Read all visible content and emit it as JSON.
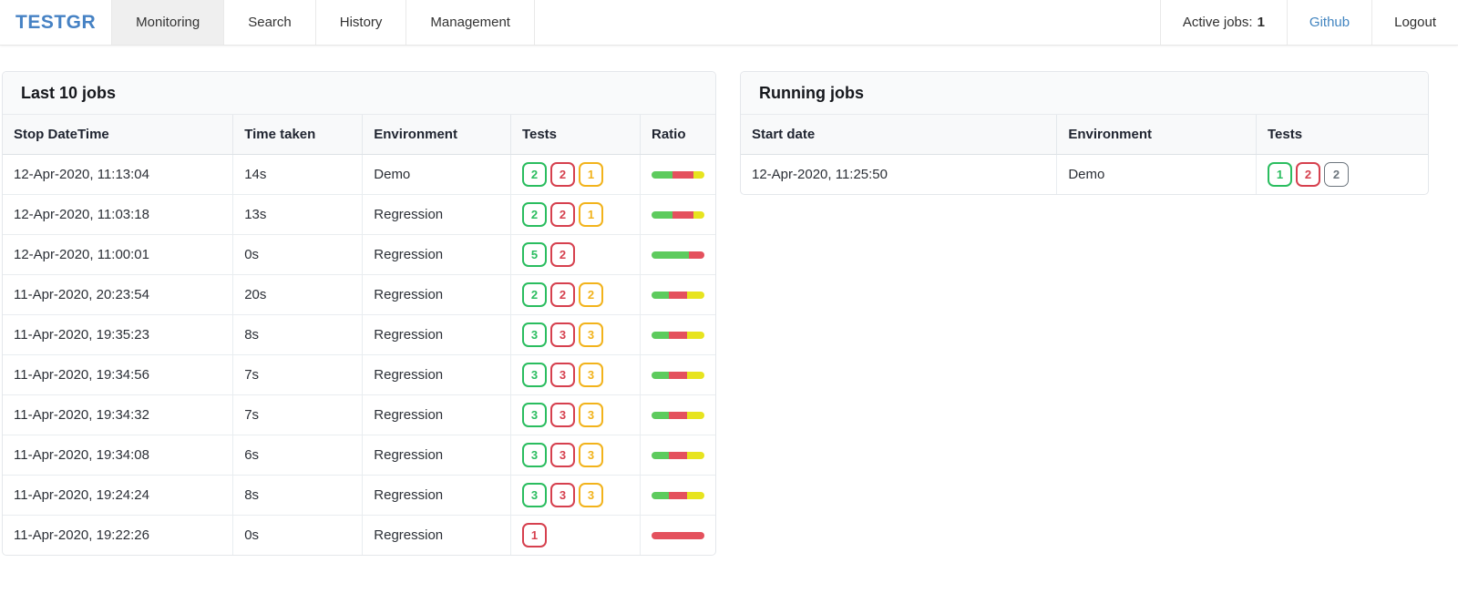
{
  "navbar": {
    "brand": "TESTGR",
    "tabs": [
      {
        "label": "Monitoring",
        "active": true
      },
      {
        "label": "Search",
        "active": false
      },
      {
        "label": "History",
        "active": false
      },
      {
        "label": "Management",
        "active": false
      }
    ],
    "active_jobs_label": "Active jobs:",
    "active_jobs_count": "1",
    "github_label": "Github",
    "logout_label": "Logout"
  },
  "colors": {
    "brand": "#4682c4",
    "link": "#4285c0",
    "badge_success": "#2abd5f",
    "badge_danger": "#d6404e",
    "badge_warning": "#f2b31b",
    "badge_secondary": "#6c757d",
    "bar_success": "#5dcb5d",
    "bar_danger": "#e4515d",
    "bar_warning": "#e7e41f"
  },
  "last_jobs": {
    "title": "Last 10 jobs",
    "columns": [
      "Stop DateTime",
      "Time taken",
      "Environment",
      "Tests",
      "Ratio"
    ],
    "col_widths": [
      "33%",
      "18.5%",
      "21%",
      "18.5%",
      "9%"
    ],
    "rows": [
      {
        "stop": "12-Apr-2020, 11:13:04",
        "time": "14s",
        "env": "Demo",
        "tests": [
          {
            "count": 2,
            "type": "success"
          },
          {
            "count": 2,
            "type": "danger"
          },
          {
            "count": 1,
            "type": "warning"
          }
        ]
      },
      {
        "stop": "12-Apr-2020, 11:03:18",
        "time": "13s",
        "env": "Regression",
        "tests": [
          {
            "count": 2,
            "type": "success"
          },
          {
            "count": 2,
            "type": "danger"
          },
          {
            "count": 1,
            "type": "warning"
          }
        ]
      },
      {
        "stop": "12-Apr-2020, 11:00:01",
        "time": "0s",
        "env": "Regression",
        "tests": [
          {
            "count": 5,
            "type": "success"
          },
          {
            "count": 2,
            "type": "danger"
          }
        ]
      },
      {
        "stop": "11-Apr-2020, 20:23:54",
        "time": "20s",
        "env": "Regression",
        "tests": [
          {
            "count": 2,
            "type": "success"
          },
          {
            "count": 2,
            "type": "danger"
          },
          {
            "count": 2,
            "type": "warning"
          }
        ]
      },
      {
        "stop": "11-Apr-2020, 19:35:23",
        "time": "8s",
        "env": "Regression",
        "tests": [
          {
            "count": 3,
            "type": "success"
          },
          {
            "count": 3,
            "type": "danger"
          },
          {
            "count": 3,
            "type": "warning"
          }
        ]
      },
      {
        "stop": "11-Apr-2020, 19:34:56",
        "time": "7s",
        "env": "Regression",
        "tests": [
          {
            "count": 3,
            "type": "success"
          },
          {
            "count": 3,
            "type": "danger"
          },
          {
            "count": 3,
            "type": "warning"
          }
        ]
      },
      {
        "stop": "11-Apr-2020, 19:34:32",
        "time": "7s",
        "env": "Regression",
        "tests": [
          {
            "count": 3,
            "type": "success"
          },
          {
            "count": 3,
            "type": "danger"
          },
          {
            "count": 3,
            "type": "warning"
          }
        ]
      },
      {
        "stop": "11-Apr-2020, 19:34:08",
        "time": "6s",
        "env": "Regression",
        "tests": [
          {
            "count": 3,
            "type": "success"
          },
          {
            "count": 3,
            "type": "danger"
          },
          {
            "count": 3,
            "type": "warning"
          }
        ]
      },
      {
        "stop": "11-Apr-2020, 19:24:24",
        "time": "8s",
        "env": "Regression",
        "tests": [
          {
            "count": 3,
            "type": "success"
          },
          {
            "count": 3,
            "type": "danger"
          },
          {
            "count": 3,
            "type": "warning"
          }
        ]
      },
      {
        "stop": "11-Apr-2020, 19:22:26",
        "time": "0s",
        "env": "Regression",
        "tests": [
          {
            "count": 1,
            "type": "danger"
          }
        ]
      }
    ]
  },
  "running_jobs": {
    "title": "Running jobs",
    "columns": [
      "Start date",
      "Environment",
      "Tests"
    ],
    "col_widths": [
      "46%",
      "29%",
      "25%"
    ],
    "rows": [
      {
        "start": "12-Apr-2020, 11:25:50",
        "env": "Demo",
        "tests": [
          {
            "count": 1,
            "type": "success"
          },
          {
            "count": 2,
            "type": "danger"
          },
          {
            "count": 2,
            "type": "secondary"
          }
        ]
      }
    ]
  }
}
